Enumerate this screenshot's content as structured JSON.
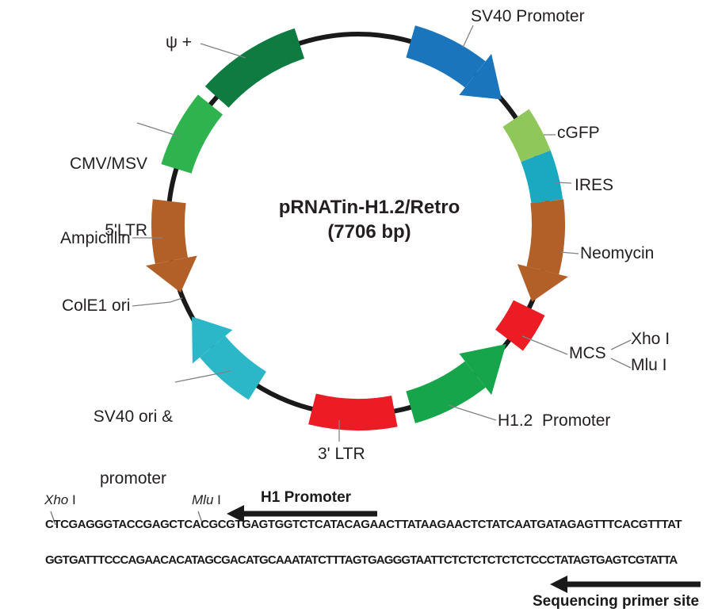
{
  "title": {
    "name": "pRNATin-H1.2/Retro",
    "size": "(7706 bp)"
  },
  "map_labels": {
    "sv40_promoter": "SV40 Promoter",
    "psi": "ψ +",
    "cmv_line1": "CMV/MSV",
    "cmv_line2": "5'LTR",
    "ampicillin": "Ampicillin",
    "cole1": "ColE1 ori",
    "sv40_ori_line1": "SV40 ori &",
    "sv40_ori_line2": "promoter",
    "ltr3": "3' LTR",
    "h1_2_promoter": "H1.2  Promoter",
    "mcs": "MCS",
    "xho": "Xho I",
    "mlu": "Mlu I",
    "neomycin": "Neomycin",
    "ires": "IRES",
    "cgfp": "cGFP"
  },
  "plasmid_features": [
    {
      "id": "sv40-promoter",
      "shape": "arrow",
      "start": 16,
      "end": 49,
      "head": 11,
      "half": 21,
      "color": "#1b75bc"
    },
    {
      "id": "cgfp",
      "shape": "block",
      "start": 56,
      "end": 69,
      "color": "#8fc75a"
    },
    {
      "id": "ires",
      "shape": "block",
      "start": 69,
      "end": 83,
      "color": "#1aa9c1"
    },
    {
      "id": "neomycin",
      "shape": "arrow",
      "start": 83,
      "end": 114,
      "head": 10,
      "half": 21,
      "color": "#b25f28"
    },
    {
      "id": "mcs",
      "shape": "block",
      "start": 116,
      "end": 127.5,
      "half": 22,
      "color": "#ec1c24"
    },
    {
      "id": "h1-2-promoter",
      "shape": "arrow",
      "start": 164,
      "end": 129,
      "head": 13,
      "half": 21,
      "color": "#16a54a"
    },
    {
      "id": "3-ltr",
      "shape": "block",
      "start": 169,
      "end": 194,
      "color": "#ec1c24"
    },
    {
      "id": "sv40-ori",
      "shape": "arrow",
      "start": 212,
      "end": 241,
      "head": 11,
      "half": 21,
      "color": "#2bb7c8"
    },
    {
      "id": "ampicillin",
      "shape": "arrow",
      "start": 277,
      "end": 249,
      "head": 10,
      "half": 21,
      "color": "#b25f28"
    },
    {
      "id": "cmv-msv-5ltr",
      "shape": "block",
      "start": 287,
      "end": 309,
      "color": "#2eb34f"
    },
    {
      "id": "psi",
      "shape": "block",
      "start": 312,
      "end": 342,
      "color": "#0e7b40"
    }
  ],
  "sequence_panel": {
    "xho_enzyme": "Xho",
    "xho_suffix": " I",
    "mlu_enzyme": "Mlu",
    "mlu_suffix": " I",
    "h1_promoter": "H1 Promoter",
    "sequence_line1": "CTCGAGGGTACCGAGCTCACGCGTGAGTGGTCTCATACAGAACTTATAAGAACTCTATCAATGATAGAGTTTCACGTTTAT",
    "sequence_line2": "GGTGATTTCCCAGAACACATAGCGACATGCAAATATCTTTAGTGAGGGTAATTCTCTCTCTCTCTCCCTATAGTGAGTCGTATTA",
    "primer_label": "Sequencing primer site"
  },
  "colors": {
    "ring": "#1a1a1a",
    "text": "#231f20",
    "leader": "#808285",
    "sequence_arrow": "#1a1a1a"
  }
}
